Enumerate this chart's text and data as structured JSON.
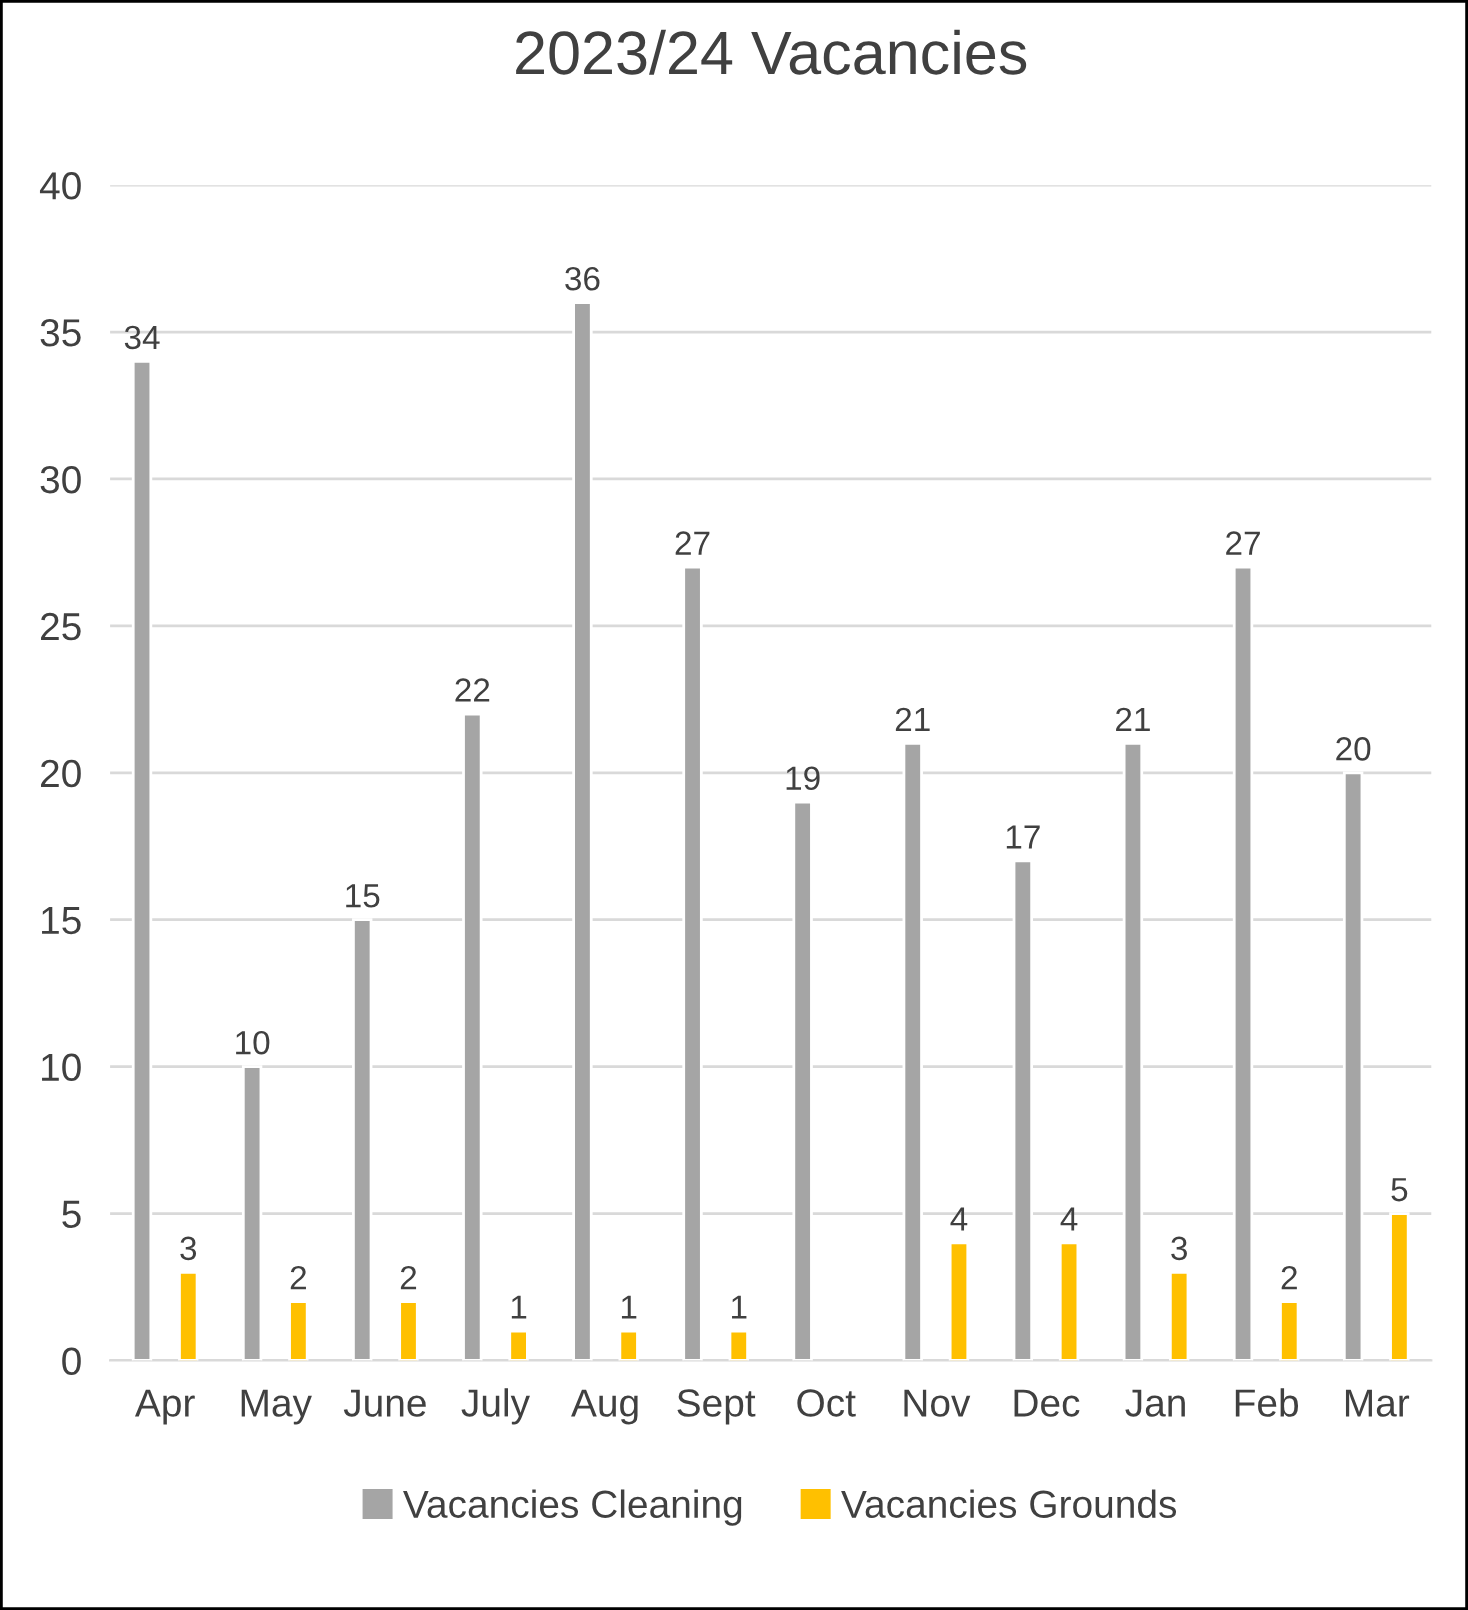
{
  "chart_data": {
    "type": "bar",
    "title": "2023/24 Vacancies",
    "categories": [
      "Apr",
      "May",
      "June",
      "July",
      "Aug",
      "Sept",
      "Oct",
      "Nov",
      "Dec",
      "Jan",
      "Feb",
      "Mar"
    ],
    "series": [
      {
        "name": "Vacancies Cleaning",
        "color": "#a5a5a5",
        "values": [
          34,
          10,
          15,
          22,
          36,
          27,
          19,
          21,
          17,
          21,
          27,
          20
        ]
      },
      {
        "name": "Vacancies Grounds",
        "color": "#ffc000",
        "values": [
          3,
          2,
          2,
          1,
          1,
          1,
          null,
          4,
          4,
          3,
          2,
          5
        ]
      }
    ],
    "ylim": [
      0,
      40
    ],
    "yticks": [
      0,
      5,
      10,
      15,
      20,
      25,
      30,
      35,
      40
    ],
    "grid": "y",
    "legend": "bottom",
    "data_labels": true
  }
}
